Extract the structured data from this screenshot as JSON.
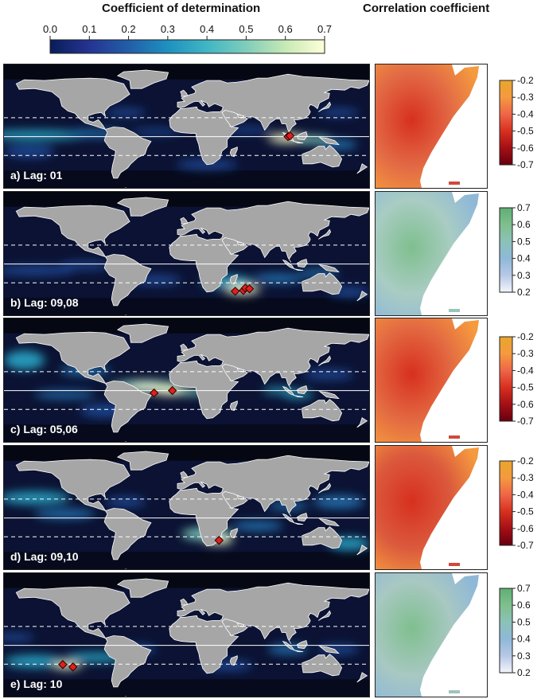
{
  "titles": {
    "left": "Coefficient of determination",
    "right": "Correlation coefficient"
  },
  "chart_data": {
    "type": "heatmap",
    "top_colorbar": {
      "ticks": [
        "0.0",
        "0.1",
        "0.2",
        "0.3",
        "0.4",
        "0.5",
        "0.6",
        "0.7"
      ],
      "range": [
        0,
        0.7
      ],
      "colors": [
        "#081d58",
        "#253494",
        "#225ea8",
        "#1d91c0",
        "#41b6c4",
        "#7fcdbb",
        "#c7e9b4",
        "#ffffd9"
      ]
    },
    "panels": [
      {
        "label": "a) Lag: 01",
        "markers": [
          [
            100,
            0
          ],
          [
            102,
            1
          ]
        ],
        "corr_colorbar": {
          "ticks": [
            "-0.2",
            "-0.3",
            "-0.4",
            "-0.5",
            "-0.6",
            "-0.7"
          ],
          "range": [
            -0.7,
            -0.2
          ],
          "colors": [
            "#67000d",
            "#a50f15",
            "#d7301f",
            "#ef6548",
            "#f59a3e",
            "#e8a62c"
          ]
        },
        "corr_fill": "#e26a45"
      },
      {
        "label": "b) Lag: 09,08",
        "markers": [
          [
            48,
            -34
          ],
          [
            56,
            -33
          ],
          [
            58,
            -30
          ],
          [
            62,
            -31
          ]
        ],
        "corr_colorbar": {
          "ticks": [
            "0.7",
            "0.6",
            "0.5",
            "0.4",
            "0.3",
            "0.2"
          ],
          "range": [
            0.2,
            0.7
          ],
          "colors": [
            "#f4f6fb",
            "#b7c8e6",
            "#8fb8d8",
            "#8bc2b8",
            "#7fbf8e",
            "#5fae74"
          ]
        },
        "corr_fill": "#a9ccc3"
      },
      {
        "label": "c) Lag: 05,06",
        "markers": [
          [
            -32,
            -3
          ],
          [
            -14,
            0
          ]
        ],
        "corr_colorbar": {
          "ticks": [
            "-0.2",
            "-0.3",
            "-0.4",
            "-0.5",
            "-0.6",
            "-0.7"
          ],
          "range": [
            -0.7,
            -0.2
          ],
          "colors": [
            "#67000d",
            "#a50f15",
            "#d7301f",
            "#ef6548",
            "#f59a3e",
            "#e8a62c"
          ]
        },
        "corr_fill": "#e36a42"
      },
      {
        "label": "d) Lag: 09,10",
        "markers": [
          [
            32,
            -28
          ]
        ],
        "corr_colorbar": {
          "ticks": [
            "-0.2",
            "-0.3",
            "-0.4",
            "-0.5",
            "-0.6",
            "-0.7"
          ],
          "range": [
            -0.7,
            -0.2
          ],
          "colors": [
            "#67000d",
            "#a50f15",
            "#d7301f",
            "#ef6548",
            "#f59a3e",
            "#e8a62c"
          ]
        },
        "corr_fill": "#db5a3d"
      },
      {
        "label": "e) Lag: 10",
        "markers": [
          [
            -122,
            -24
          ],
          [
            -112,
            -27
          ]
        ],
        "corr_colorbar": {
          "ticks": [
            "0.7",
            "0.6",
            "0.5",
            "0.4",
            "0.3",
            "0.2"
          ],
          "range": [
            0.2,
            0.7
          ],
          "colors": [
            "#f4f6fb",
            "#b7c8e6",
            "#8fb8d8",
            "#8bc2b8",
            "#7fbf8e",
            "#5fae74"
          ]
        },
        "corr_fill": "#a8c8c2"
      }
    ]
  }
}
